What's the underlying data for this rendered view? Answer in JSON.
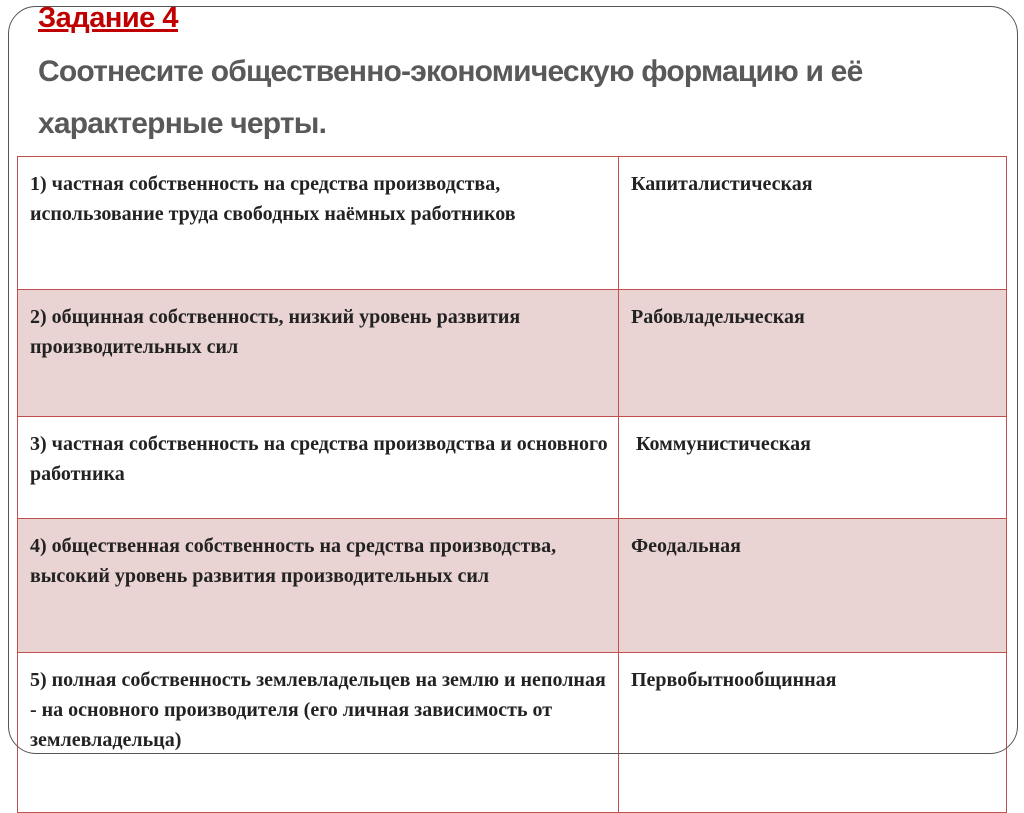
{
  "task_label": "Задание 4",
  "title": "Соотнесите общественно-экономическую формацию и её характерные черты.",
  "rows": [
    {
      "feature": "1) частная собственность на средства производства, использование труда свободных наёмных работников",
      "formation": "Капиталистическая"
    },
    {
      "feature": "2) общинная собственность, низкий уровень развития производительных сил",
      "formation": "Рабовладельческая"
    },
    {
      "feature": "3) частная собственность на средства производства и основного работника",
      "formation": " Коммунистическая"
    },
    {
      "feature": "4) общественная собственность на средства производства, высокий уровень развития производительных сил",
      "formation": "Феодальная"
    },
    {
      "feature": "5) полная собственность землевладельцев на землю и неполная - на основного производителя (его личная зависимость от землевладельца)",
      "formation": "Первобытнообщинная"
    }
  ],
  "colors": {
    "accent": "#c00000",
    "border": "#c0504d",
    "shade": "#ead3d3",
    "title": "#595959"
  }
}
